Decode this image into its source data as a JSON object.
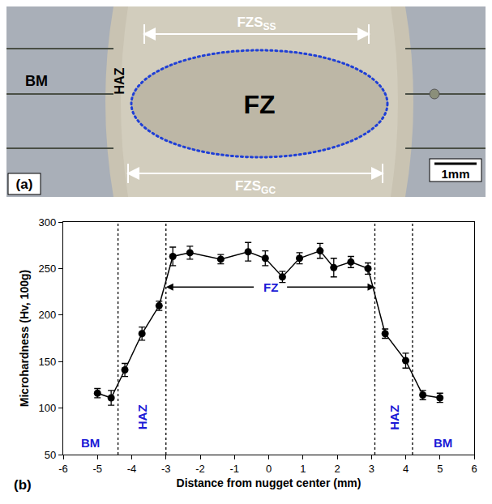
{
  "panel_a": {
    "label": "(a)",
    "fz": "FZ",
    "haz": "HAZ",
    "bm": "BM",
    "scale_bar": "1mm",
    "span_top": {
      "text": "FZS",
      "subscript": "SS"
    },
    "span_bottom": {
      "text": "FZS",
      "subscript": "GC"
    }
  },
  "chart_data": {
    "type": "scatter",
    "label": "(b)",
    "x_label": "Distance from nugget center (mm)",
    "y_label": "Microhardness (Hv, 100g)",
    "x": [
      -5,
      -4.6,
      -4.2,
      -3.7,
      -3.2,
      -2.8,
      -2.3,
      -1.4,
      -0.6,
      -0.1,
      0.4,
      0.9,
      1.5,
      1.9,
      2.4,
      2.9,
      3.4,
      4.0,
      4.5,
      5.0
    ],
    "values": [
      116,
      111,
      141,
      180,
      210,
      263,
      267,
      260,
      268,
      261,
      241,
      261,
      269,
      251,
      257,
      250,
      180,
      151,
      114,
      111
    ],
    "errors": [
      5,
      8,
      7,
      7,
      5,
      10,
      7,
      5,
      10,
      8,
      6,
      6,
      8,
      10,
      6,
      6,
      5,
      8,
      5,
      5
    ],
    "color": "#000000",
    "marker": "circle",
    "line_style": "solid",
    "xlim": [
      -6,
      6
    ],
    "xticks": [
      -6,
      -5,
      -4,
      -3,
      -2,
      -1,
      0,
      1,
      2,
      3,
      4,
      5,
      6
    ],
    "ylim": [
      50,
      300
    ],
    "yticks": [
      50,
      100,
      150,
      200,
      250,
      300
    ],
    "grid": false,
    "boundaries": [
      -4.4,
      -3,
      3.1,
      4.2
    ],
    "zones": [
      {
        "label": "BM"
      },
      {
        "label": "HAZ"
      },
      {
        "label": "FZ"
      },
      {
        "label": "HAZ"
      },
      {
        "label": "BM"
      }
    ]
  }
}
